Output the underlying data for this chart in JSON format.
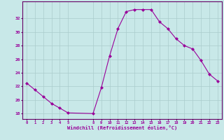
{
  "x": [
    0,
    1,
    2,
    3,
    4,
    5,
    8,
    9,
    10,
    11,
    12,
    13,
    14,
    15,
    16,
    17,
    18,
    19,
    20,
    21,
    22,
    23
  ],
  "y": [
    22.5,
    21.5,
    20.5,
    19.5,
    18.8,
    18.1,
    18.0,
    21.8,
    26.5,
    30.5,
    33.0,
    33.3,
    33.3,
    33.3,
    31.5,
    30.5,
    29.0,
    28.0,
    27.5,
    25.8,
    23.8,
    22.8
  ],
  "line_color": "#990099",
  "marker_color": "#990099",
  "bg_color": "#c8e8e8",
  "grid_color": "#aacccc",
  "xlabel": "Windchill (Refroidissement éolien,°C)",
  "xlabel_color": "#990099",
  "ylabel_ticks": [
    18,
    20,
    22,
    24,
    26,
    28,
    30,
    32
  ],
  "xticks": [
    0,
    1,
    2,
    3,
    4,
    5,
    8,
    9,
    10,
    11,
    12,
    13,
    14,
    15,
    16,
    17,
    18,
    19,
    20,
    21,
    22,
    23
  ],
  "ylim": [
    17.2,
    34.5
  ],
  "xlim": [
    -0.5,
    23.5
  ],
  "tick_color": "#990099",
  "axis_color": "#660066"
}
